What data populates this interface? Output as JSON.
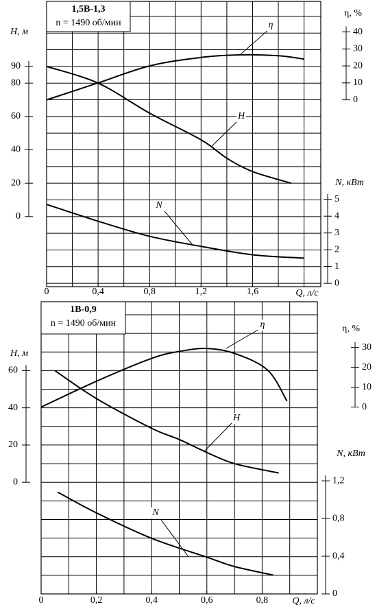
{
  "chart_data": [
    {
      "type": "line",
      "annotations": [
        "1,5В-1,3",
        "n = 1490 об/мин"
      ],
      "xlabel": "Q, л/с",
      "ylabel": "H, м",
      "y2label": "η, %",
      "y3label": "N, кВт",
      "xlim": [
        0,
        2.13
      ],
      "xticks": [
        0,
        {
          "value": 0.4,
          "label": "0,4"
        },
        {
          "value": 0.8,
          "label": "0,8"
        },
        {
          "value": 1.2,
          "label": "1,2"
        },
        {
          "value": 1.6,
          "label": "1,6"
        }
      ],
      "xgrid": [
        0.2,
        0.4,
        0.6,
        0.8,
        1.0,
        1.2,
        1.4,
        1.6,
        1.8,
        2.0
      ],
      "ylim": [
        -42,
        129
      ],
      "yticks": [
        0,
        20,
        40,
        60,
        80,
        90
      ],
      "ygrid": [
        -40,
        -30,
        -20,
        -10,
        0,
        10,
        20,
        30,
        40,
        50,
        60,
        70,
        80,
        90,
        100,
        110,
        120
      ],
      "y2lim": [
        -110,
        58
      ],
      "y2ticks": [
        0,
        10,
        20,
        30,
        40
      ],
      "y3lim": [
        -0.2,
        16.8
      ],
      "y3ticks": [
        0,
        1,
        2,
        3,
        4,
        5
      ],
      "grid": true,
      "series": [
        {
          "name": "H",
          "axis": "y",
          "color": "#000000",
          "x": [
            0,
            0.4,
            0.8,
            1.2,
            1.4,
            1.6,
            1.9
          ],
          "values": [
            90,
            80,
            62,
            46,
            35,
            27,
            20
          ]
        },
        {
          "name": "η",
          "axis": "y2",
          "color": "#000000",
          "x": [
            0,
            0.4,
            0.8,
            1.2,
            1.5,
            1.8,
            2.0
          ],
          "values": [
            0,
            10,
            20,
            25,
            26.5,
            26,
            24
          ]
        },
        {
          "name": "N",
          "axis": "y3",
          "color": "#000000",
          "x": [
            0,
            0.4,
            0.8,
            1.2,
            1.6,
            2.0
          ],
          "values": [
            4.7,
            3.7,
            2.8,
            2.2,
            1.7,
            1.5
          ]
        }
      ]
    },
    {
      "type": "line",
      "annotations": [
        "1В-0,9",
        "n = 1490 об/мин"
      ],
      "xlabel": "Q, л/с",
      "ylabel": "H, м",
      "y2label": "η, %",
      "y3label": "N, кВт",
      "xlim": [
        0,
        1.0
      ],
      "xticks": [
        0,
        {
          "value": 0.2,
          "label": "0,2"
        },
        {
          "value": 0.4,
          "label": "0,4"
        },
        {
          "value": 0.6,
          "label": "0,6"
        },
        {
          "value": 0.8,
          "label": "0,8"
        }
      ],
      "xgrid": [
        0.1,
        0.2,
        0.3,
        0.4,
        0.5,
        0.6,
        0.7,
        0.8,
        0.9
      ],
      "ylim": [
        -60,
        97
      ],
      "yticks": [
        0,
        20,
        40,
        60
      ],
      "ygrid": [
        -50,
        -40,
        -30,
        -20,
        -10,
        0,
        10,
        20,
        30,
        40,
        50,
        60,
        70,
        80,
        90
      ],
      "y2lim": [
        -94,
        53
      ],
      "y2ticks": [
        0,
        10,
        20,
        30
      ],
      "y3lim": [
        0,
        3.1
      ],
      "y3ticks": [
        0,
        {
          "value": 0.4,
          "label": "0,4"
        },
        {
          "value": 0.8,
          "label": "0,8"
        },
        {
          "value": 1.2,
          "label": "1,2"
        }
      ],
      "grid": true,
      "series": [
        {
          "name": "H",
          "axis": "y",
          "color": "#000000",
          "x": [
            0.05,
            0.2,
            0.4,
            0.5,
            0.6,
            0.7,
            0.86
          ],
          "values": [
            60,
            45,
            29,
            23,
            16,
            10,
            5
          ]
        },
        {
          "name": "η",
          "axis": "y2",
          "color": "#000000",
          "x": [
            0,
            0.2,
            0.4,
            0.5,
            0.6,
            0.7,
            0.82,
            0.89
          ],
          "values": [
            0,
            13,
            24.5,
            28,
            29.5,
            27,
            18.6,
            3
          ]
        },
        {
          "name": "N",
          "axis": "y3",
          "color": "#000000",
          "x": [
            0.06,
            0.2,
            0.4,
            0.6,
            0.7,
            0.84
          ],
          "values": [
            1.08,
            0.86,
            0.59,
            0.39,
            0.29,
            0.2
          ]
        }
      ]
    }
  ]
}
